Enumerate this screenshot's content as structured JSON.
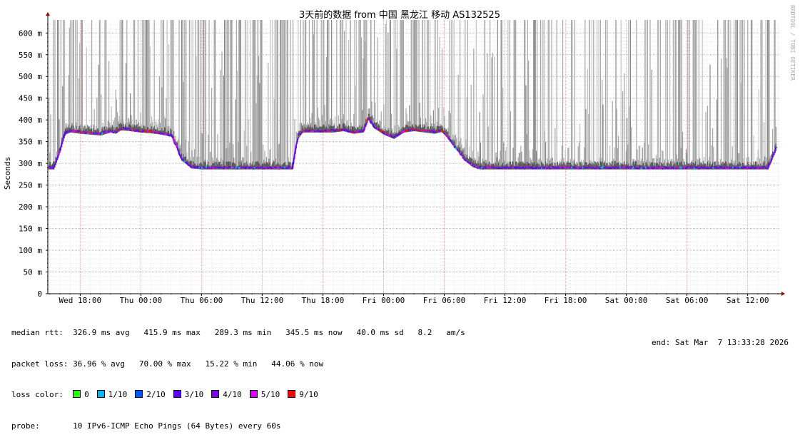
{
  "chart_data": {
    "type": "area",
    "title": "3天前的数据 from 中国 黑龙江 移动 AS132525",
    "ylabel": "Seconds",
    "watermark": "RRDTOOL / TOBI OETIKER",
    "ylim": [
      0,
      0.63
    ],
    "y_ticks": [
      "0",
      "50 m",
      "100 m",
      "150 m",
      "200 m",
      "250 m",
      "300 m",
      "350 m",
      "400 m",
      "450 m",
      "500 m",
      "550 m",
      "600 m"
    ],
    "x_ticks": [
      "Wed 18:00",
      "Thu 00:00",
      "Thu 06:00",
      "Thu 12:00",
      "Thu 18:00",
      "Fri 00:00",
      "Fri 06:00",
      "Fri 12:00",
      "Fri 18:00",
      "Sat 00:00",
      "Sat 06:00",
      "Sat 12:00"
    ],
    "x_range_hours": [
      -3.2,
      69.2
    ],
    "series": [
      {
        "name": "median rtt",
        "x": [
          -3.2,
          -2.6,
          -2.0,
          -1.5,
          -1.0,
          0.0,
          1.0,
          2.0,
          3.0,
          3.5,
          4.0,
          5.0,
          6.0,
          7.0,
          8.0,
          9.0,
          9.5,
          10.0,
          11.0,
          12.0,
          13.0,
          14.0,
          14.8,
          15.5,
          16.0,
          17.0,
          18.0,
          19.0,
          20.0,
          21.0,
          21.5,
          22.0,
          22.5,
          23.0,
          24.0,
          25.0,
          26.0,
          27.0,
          28.0,
          28.5,
          29.0,
          30.0,
          31.0,
          32.0,
          33.0,
          34.0,
          35.0,
          35.7,
          36.0,
          37.0,
          38.0,
          38.8,
          39.5,
          40.0,
          40.5,
          41.0,
          41.5,
          42.0,
          43.0,
          44.0,
          44.8,
          45.2,
          46.0,
          47.0,
          48.0,
          49.0,
          50.0,
          51.0,
          52.0,
          53.0,
          54.0,
          55.0,
          56.0,
          57.0,
          58.0,
          59.0,
          60.0,
          61.0,
          62.0,
          63.0,
          64.0,
          65.0,
          66.0,
          66.5,
          67.0,
          67.5,
          68.0,
          69.0
        ],
        "values": [
          0.29,
          0.29,
          0.33,
          0.37,
          0.375,
          0.372,
          0.37,
          0.368,
          0.375,
          0.372,
          0.38,
          0.378,
          0.375,
          0.373,
          0.37,
          0.365,
          0.34,
          0.31,
          0.292,
          0.29,
          0.29,
          0.29,
          0.29,
          0.29,
          0.29,
          0.29,
          0.29,
          0.29,
          0.29,
          0.29,
          0.36,
          0.375,
          0.375,
          0.375,
          0.375,
          0.375,
          0.378,
          0.372,
          0.375,
          0.405,
          0.385,
          0.37,
          0.36,
          0.375,
          0.378,
          0.375,
          0.372,
          0.376,
          0.37,
          0.34,
          0.31,
          0.295,
          0.29,
          0.29,
          0.29,
          0.29,
          0.29,
          0.29,
          0.29,
          0.29,
          0.29,
          0.29,
          0.29,
          0.29,
          0.29,
          0.29,
          0.29,
          0.29,
          0.29,
          0.29,
          0.29,
          0.29,
          0.29,
          0.29,
          0.29,
          0.29,
          0.29,
          0.29,
          0.29,
          0.29,
          0.29,
          0.29,
          0.29,
          0.29,
          0.29,
          0.29,
          0.29,
          0.345
        ]
      }
    ]
  },
  "legend": {
    "rtt_label": "median rtt:",
    "rtt_values": "326.9 ms avg   415.9 ms max   289.3 ms min   345.5 ms now   40.0 ms sd   8.2   am/s",
    "loss_label": "packet loss:",
    "loss_values": "36.96 % avg   70.00 % max   15.22 % min   44.06 % now",
    "color_label": "loss color:",
    "colors": [
      {
        "label": "0",
        "color": "#26ff00"
      },
      {
        "label": "1/10",
        "color": "#00b8ff"
      },
      {
        "label": "2/10",
        "color": "#0059ff"
      },
      {
        "label": "3/10",
        "color": "#5e00ff"
      },
      {
        "label": "4/10",
        "color": "#7e00ff"
      },
      {
        "label": "5/10",
        "color": "#dd00ff"
      },
      {
        "label": "9/10",
        "color": "#ff0000"
      }
    ],
    "probe_label": "probe:",
    "probe_value": "10 IPv6-ICMP Echo Pings (64 Bytes) every 60s",
    "end_label": "end: Sat Mar  7 13:33:28 2026"
  }
}
